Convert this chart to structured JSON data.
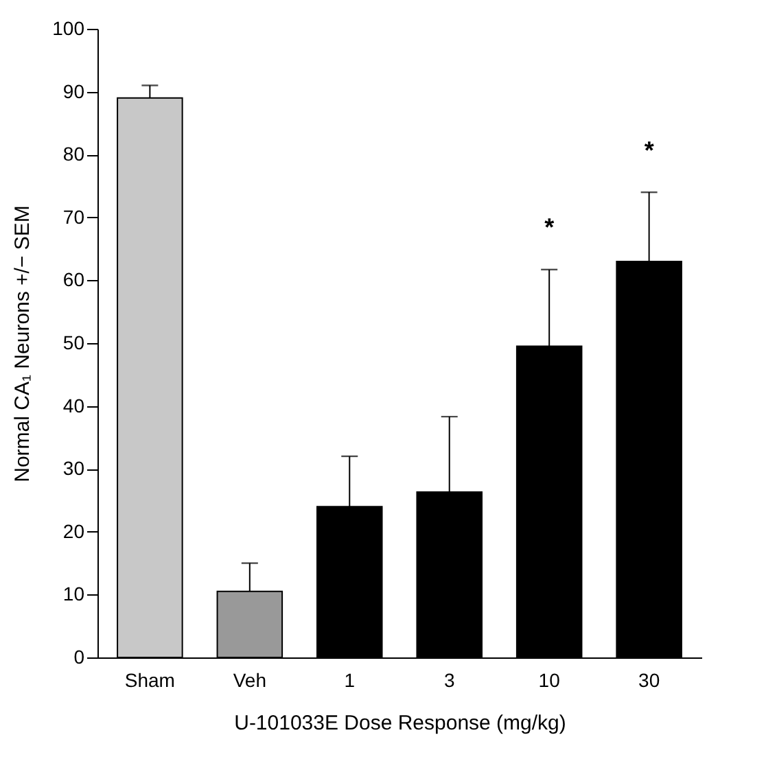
{
  "chart_data": {
    "type": "bar",
    "xlabel": "U-101033E Dose Response (mg/kg)",
    "ylabel": "Normal CA₁ Neurons +/− SEM",
    "categories": [
      "Sham",
      "Veh",
      "1",
      "3",
      "10",
      "30"
    ],
    "values": [
      89,
      10.5,
      24,
      26.3,
      49.5,
      63
    ],
    "errors": [
      [
        89,
        91
      ],
      [
        10.5,
        15
      ],
      [
        24,
        32
      ],
      [
        26.3,
        38.3
      ],
      [
        49.5,
        61.7
      ],
      [
        63,
        74
      ]
    ],
    "colors": [
      "#c8c8c8",
      "#999999",
      "#000000",
      "#000000",
      "#000000",
      "#000000"
    ],
    "ylim": [
      0,
      100
    ],
    "yticks": [
      0,
      10,
      20,
      30,
      40,
      50,
      60,
      70,
      80,
      90,
      100
    ],
    "annotations": [
      "*",
      "*"
    ],
    "grid": false
  }
}
